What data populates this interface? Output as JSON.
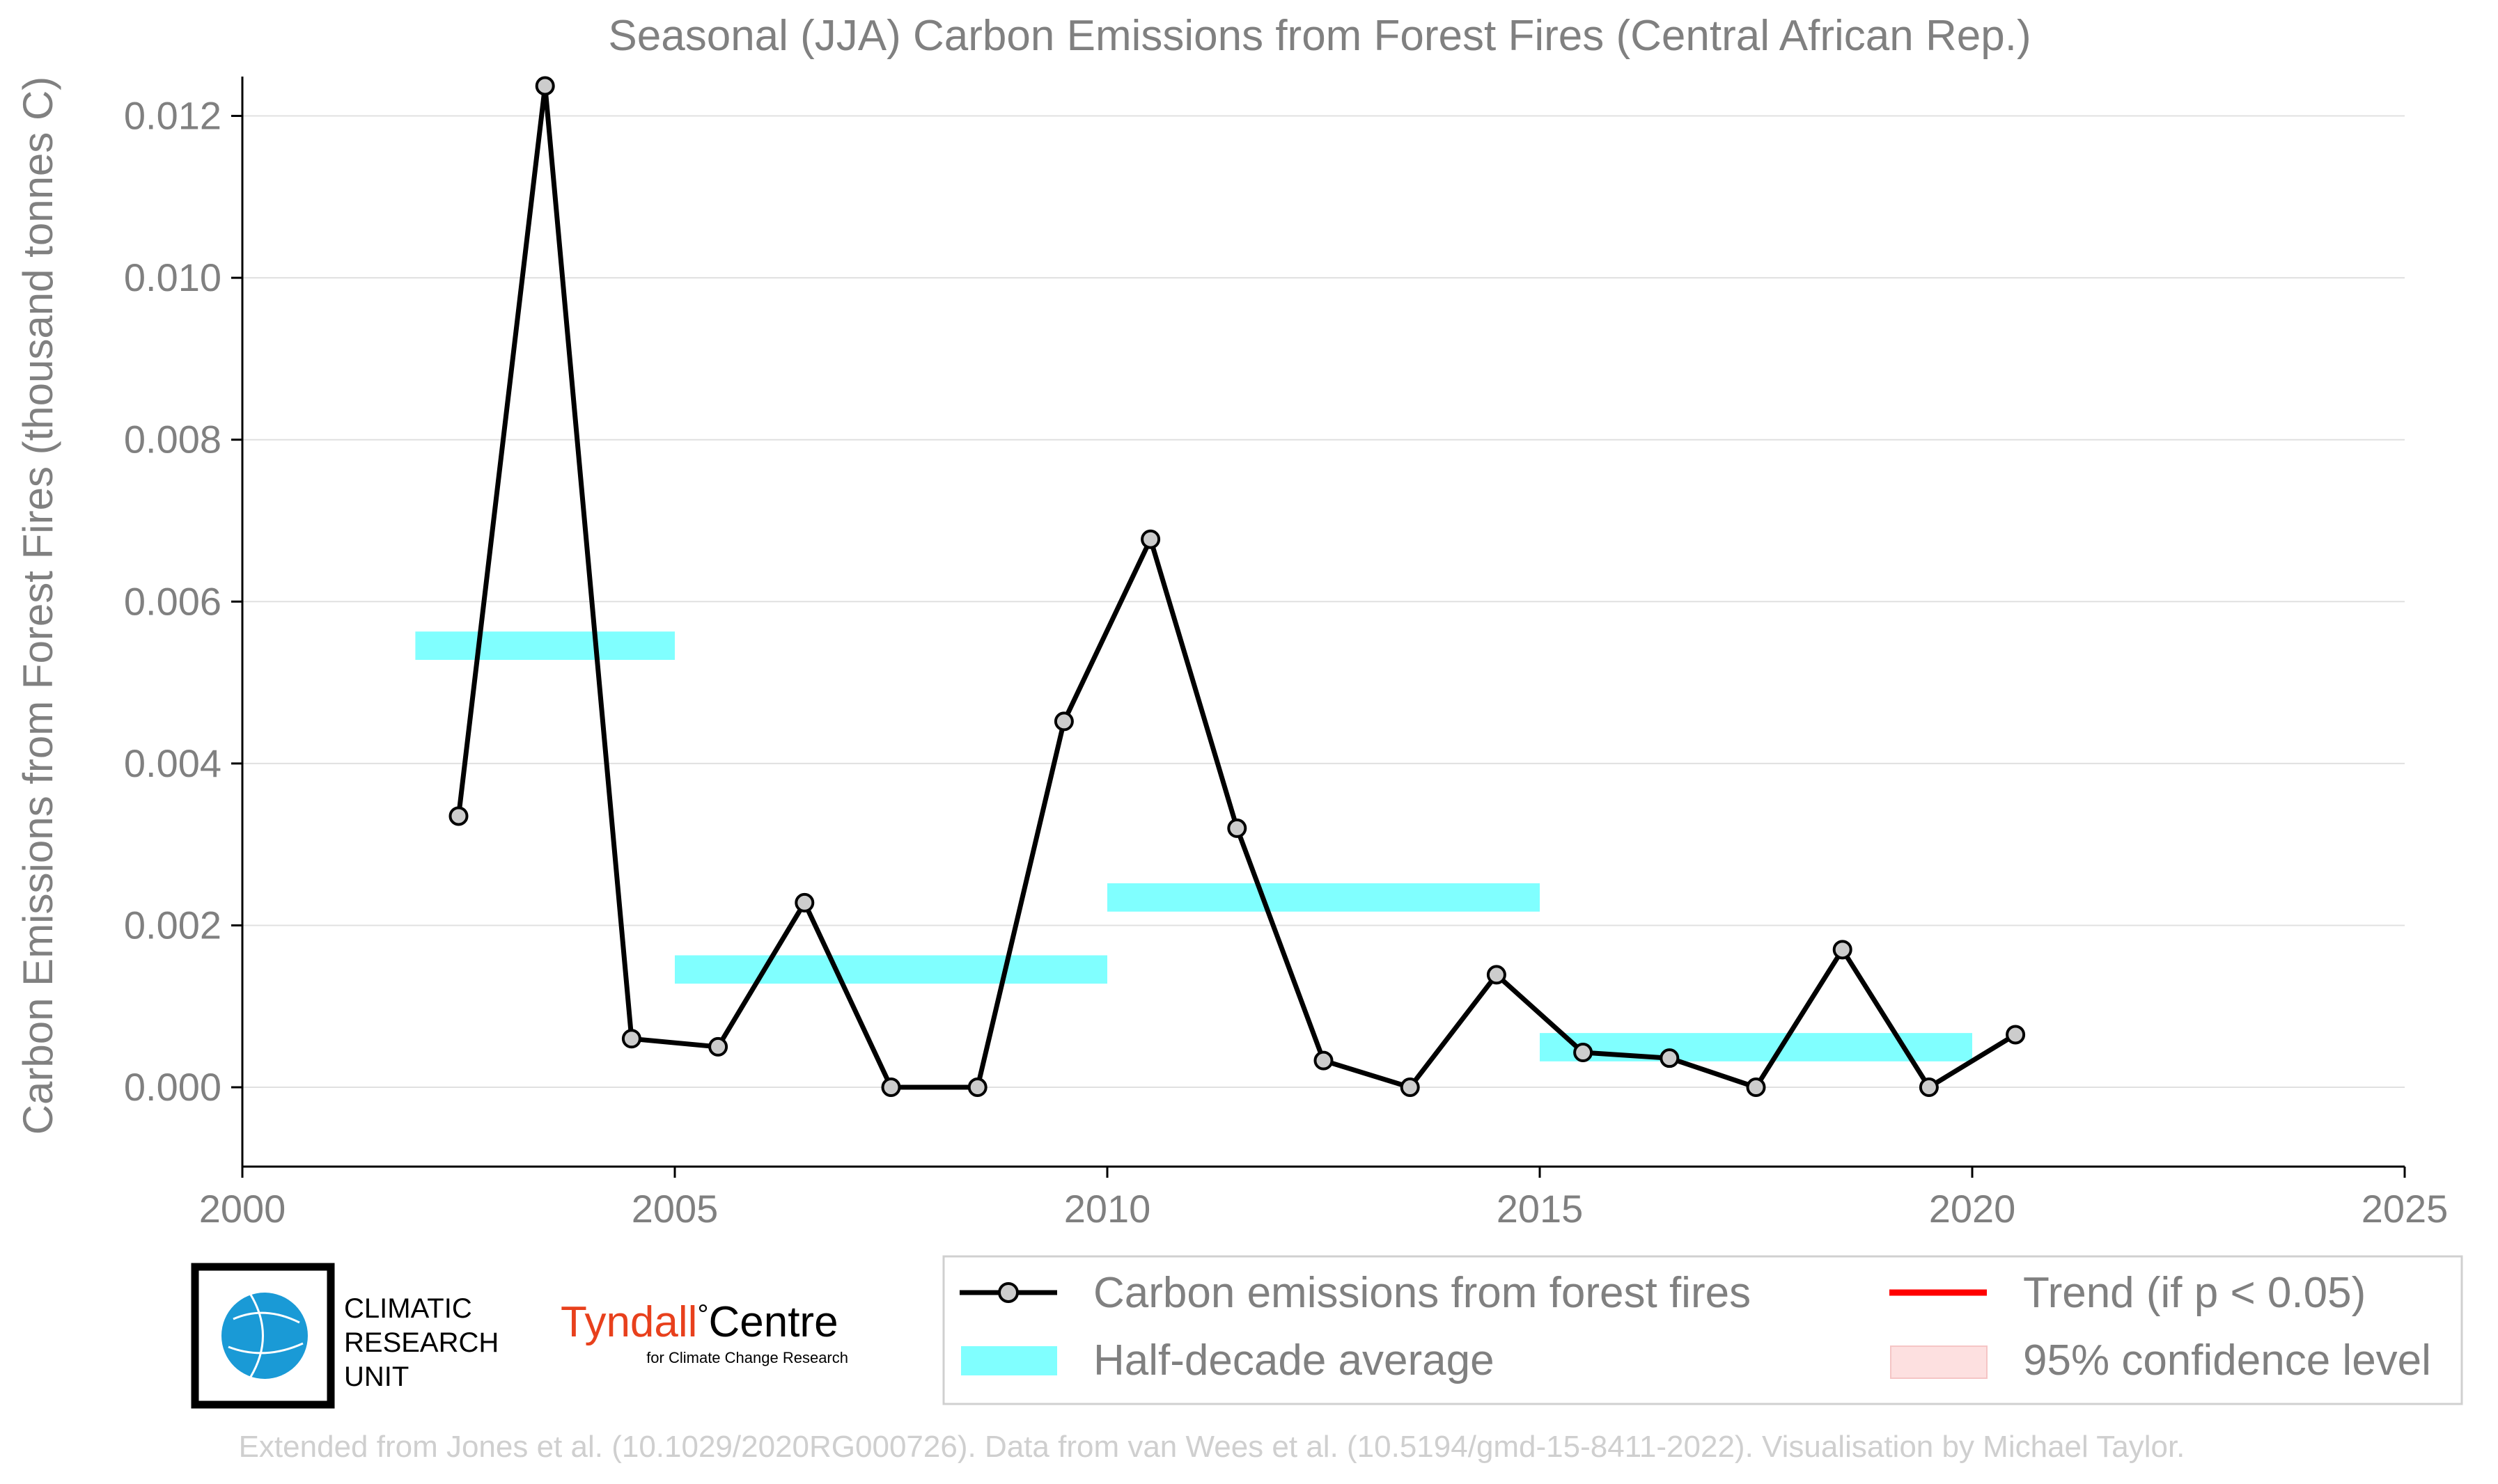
{
  "chart_data": {
    "type": "line",
    "title": "Seasonal (JJA) Carbon Emissions from Forest Fires (Central African Rep.)",
    "ylabel": "Carbon Emissions from Forest Fires (thousand tonnes C)",
    "xlabel": "",
    "xlim": [
      2000,
      2025
    ],
    "ylim": [
      -0.00098,
      0.0124
    ],
    "x_ticks": [
      2000,
      2005,
      2010,
      2015,
      2020,
      2025
    ],
    "y_ticks": [
      0.0,
      0.002,
      0.004,
      0.006,
      0.008,
      0.01,
      0.012
    ],
    "y_tick_labels": [
      "0.000",
      "0.002",
      "0.004",
      "0.006",
      "0.008",
      "0.010",
      "0.012"
    ],
    "grid": "horizontal",
    "series": [
      {
        "name": "Carbon emissions from forest fires",
        "color": "#000000",
        "x": [
          2002.5,
          2003.5,
          2004.5,
          2005.5,
          2006.5,
          2007.5,
          2008.5,
          2009.5,
          2010.5,
          2011.5,
          2012.5,
          2013.5,
          2014.5,
          2015.5,
          2016.5,
          2017.5,
          2018.5,
          2019.5,
          2020.5
        ],
        "y": [
          0.00335,
          0.01237,
          0.0006,
          0.0005,
          0.00228,
          0.0,
          0.0,
          0.00452,
          0.00677,
          0.0032,
          0.00033,
          0.0,
          0.00139,
          0.00043,
          0.00036,
          0.0,
          0.0017,
          0.0,
          0.00065
        ]
      }
    ],
    "half_decade_average": {
      "name": "Half-decade average",
      "color": "#80ffff",
      "segments": [
        {
          "x_start": 2002,
          "x_end": 2005,
          "y_low": 0.00528,
          "y_high": 0.00563
        },
        {
          "x_start": 2005,
          "x_end": 2010,
          "y_low": 0.00128,
          "y_high": 0.00163
        },
        {
          "x_start": 2010,
          "x_end": 2015,
          "y_low": 0.00217,
          "y_high": 0.00252
        },
        {
          "x_start": 2015,
          "x_end": 2020,
          "y_low": 0.00032,
          "y_high": 0.00067
        }
      ]
    },
    "legend": {
      "placement": "bottom-right",
      "entries": [
        {
          "label": "Carbon emissions from forest fires",
          "kind": "line-marker",
          "color": "#000000"
        },
        {
          "label": "Trend (if p < 0.05)",
          "kind": "line",
          "color": "#ff0000"
        },
        {
          "label": "Half-decade average",
          "kind": "band",
          "color": "#80ffff"
        },
        {
          "label": "95% confidence level",
          "kind": "band",
          "color": "#fde0e0"
        }
      ]
    }
  },
  "logos": {
    "cru": {
      "line1": "CLIMATIC",
      "line2": "RESEARCH",
      "line3": "UNIT"
    },
    "tyndall": {
      "name": "Tyndall",
      "degree": "°",
      "name2": "Centre",
      "sub": "for Climate Change Research"
    }
  },
  "footer": "Extended from Jones et al. (10.1029/2020RG000726). Data from van Wees et al. (10.5194/gmd-15-8411-2022). Visualisation by Michael Taylor."
}
